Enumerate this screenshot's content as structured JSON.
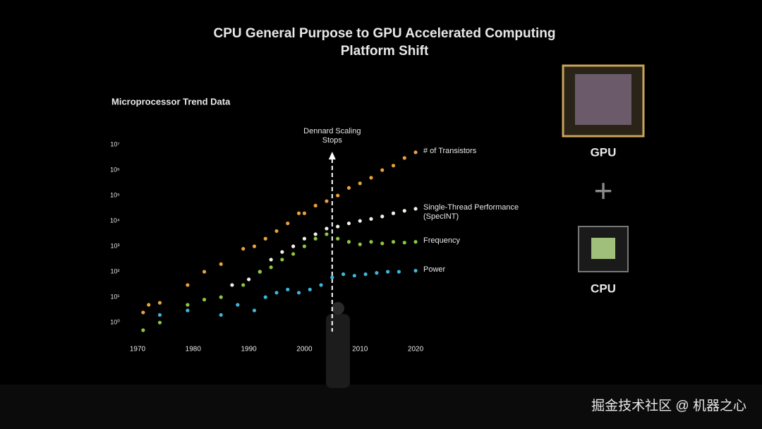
{
  "chart_data": {
    "type": "scatter",
    "title": [
      "CPU General Purpose to GPU Accelerated Computing",
      "Platform Shift"
    ],
    "subtitle": "Microprocessor Trend Data",
    "log_y": true,
    "xlim": [
      1968,
      2022
    ],
    "xticks": [
      1970,
      1980,
      1990,
      2000,
      2010,
      2020
    ],
    "ylim": [
      0.3,
      60000000
    ],
    "yticks": [
      {
        "value": 1,
        "label": "10⁰"
      },
      {
        "value": 10,
        "label": "10¹"
      },
      {
        "value": 100,
        "label": "10²"
      },
      {
        "value": 1000,
        "label": "10³"
      },
      {
        "value": 10000,
        "label": "10⁴"
      },
      {
        "value": 100000,
        "label": "10⁵"
      },
      {
        "value": 1000000,
        "label": "10⁶"
      },
      {
        "value": 10000000,
        "label": "10⁷"
      }
    ],
    "annotation": {
      "text": "Dennard Scaling Stops",
      "x": 2005
    },
    "series": [
      {
        "name": "# of Transistors",
        "color": "#e9a23b",
        "x": [
          1971,
          1972,
          1974,
          1979,
          1982,
          1985,
          1989,
          1991,
          1993,
          1995,
          1997,
          1999,
          2000,
          2002,
          2004,
          2006,
          2008,
          2010,
          2012,
          2014,
          2016,
          2018,
          2020
        ],
        "values": [
          2.5,
          5,
          6,
          30,
          100,
          200,
          800,
          1000,
          2000,
          4000,
          8000,
          20000,
          20000,
          40000,
          60000,
          100000,
          200000,
          300000,
          500000,
          1000000,
          1500000,
          3000000,
          5000000
        ]
      },
      {
        "name": "Single-Thread Performance (SpecINT)",
        "color": "#f2f0e6",
        "x": [
          1987,
          1990,
          1992,
          1994,
          1996,
          1998,
          2000,
          2002,
          2004,
          2006,
          2008,
          2010,
          2012,
          2014,
          2016,
          2018,
          2020
        ],
        "values": [
          30,
          50,
          100,
          300,
          600,
          1000,
          2000,
          3000,
          5000,
          6000,
          8000,
          10000,
          12000,
          15000,
          20000,
          25000,
          30000
        ]
      },
      {
        "name": "Frequency",
        "color": "#8dc63f",
        "x": [
          1971,
          1974,
          1979,
          1982,
          1985,
          1989,
          1992,
          1994,
          1996,
          1998,
          2000,
          2002,
          2004,
          2006,
          2008,
          2010,
          2012,
          2014,
          2016,
          2018,
          2020
        ],
        "values": [
          0.5,
          1,
          5,
          8,
          10,
          30,
          100,
          150,
          300,
          500,
          1000,
          2000,
          3000,
          2000,
          1500,
          1200,
          1500,
          1300,
          1500,
          1400,
          1500
        ]
      },
      {
        "name": "Power",
        "color": "#3db6da",
        "x": [
          1974,
          1979,
          1985,
          1988,
          1991,
          1993,
          1995,
          1997,
          1999,
          2001,
          2003,
          2005,
          2007,
          2009,
          2011,
          2013,
          2015,
          2017,
          2020
        ],
        "values": [
          2,
          3,
          2,
          5,
          3,
          10,
          15,
          20,
          15,
          20,
          30,
          60,
          80,
          70,
          80,
          90,
          100,
          100,
          110
        ]
      }
    ]
  },
  "side": {
    "gpu": "GPU",
    "plus": "+",
    "cpu": "CPU"
  },
  "watermark": "掘金技术社区 @ 机器之心"
}
